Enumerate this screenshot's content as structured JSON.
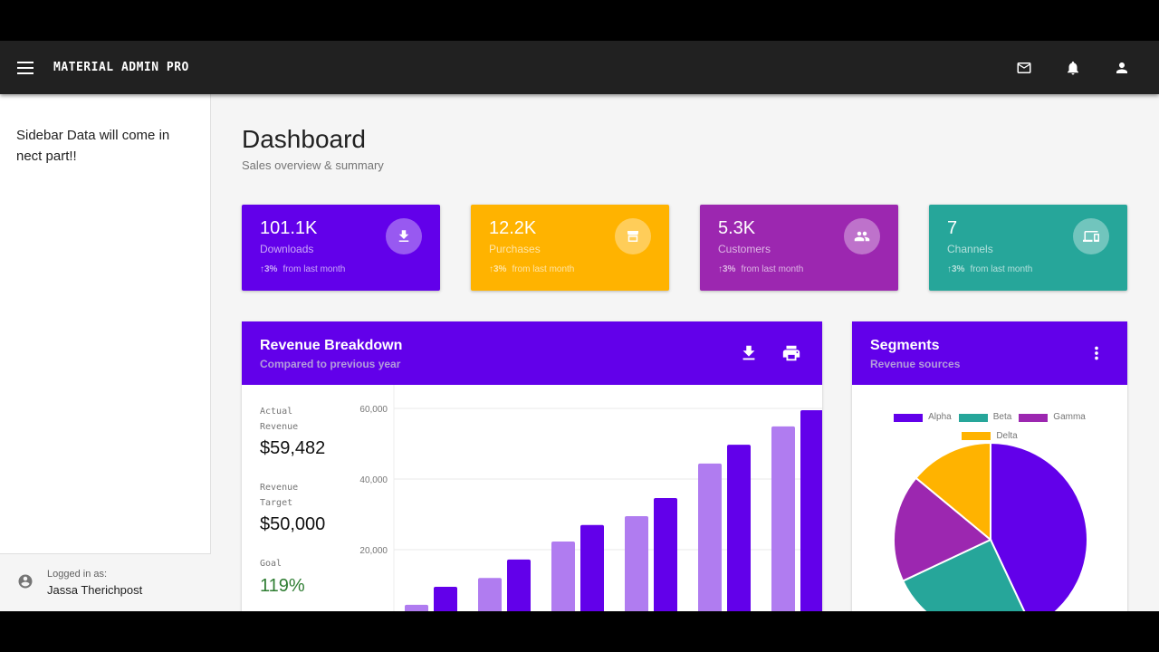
{
  "app": {
    "title": "MATERIAL ADMIN PRO",
    "icons": [
      "menu-icon",
      "mail-icon",
      "bell-icon",
      "account-icon"
    ]
  },
  "sidebar": {
    "text": "Sidebar Data will come in nect part!!",
    "logged_in_label": "Logged in as:",
    "user_name": "Jassa Therichpost"
  },
  "page": {
    "title": "Dashboard",
    "subtitle": "Sales overview & summary"
  },
  "stats": [
    {
      "value": "101.1K",
      "label": "Downloads",
      "trend": "↑3%",
      "trend_text": "from last month",
      "color": "#6200ea",
      "icon": "download-icon"
    },
    {
      "value": "12.2K",
      "label": "Purchases",
      "trend": "↑3%",
      "trend_text": "from last month",
      "color": "#ffb300",
      "icon": "store-icon"
    },
    {
      "value": "5.3K",
      "label": "Customers",
      "trend": "↑3%",
      "trend_text": "from last month",
      "color": "#9c27b0",
      "icon": "people-icon"
    },
    {
      "value": "7",
      "label": "Channels",
      "trend": "↑3%",
      "trend_text": "from last month",
      "color": "#26a69a",
      "icon": "devices-icon"
    }
  ],
  "revenue": {
    "title": "Revenue Breakdown",
    "subtitle": "Compared to previous year",
    "actual_label": "Actual Revenue",
    "actual_value": "$59,482",
    "target_label": "Revenue Target",
    "target_value": "$50,000",
    "goal_label": "Goal",
    "goal_value": "119%",
    "goal_color": "#2e7d32"
  },
  "segments": {
    "title": "Segments",
    "subtitle": "Revenue sources"
  },
  "chart_data": [
    {
      "type": "bar",
      "ylim": [
        0,
        60000
      ],
      "yticks": [
        "20,000",
        "40,000",
        "60,000"
      ],
      "grid": true,
      "series": [
        {
          "color": "#b07cf0",
          "values": [
            4400,
            12000,
            22300,
            29500,
            44400,
            54900
          ]
        },
        {
          "color": "#6200ea",
          "values": [
            9500,
            17200,
            27000,
            34600,
            49700,
            59482
          ]
        }
      ]
    },
    {
      "type": "pie",
      "legend": "top",
      "labels": [
        "Alpha",
        "Beta",
        "Gamma",
        "Delta"
      ],
      "values": [
        43,
        25,
        18,
        14
      ],
      "colors": [
        "#6200ea",
        "#26a69a",
        "#9c27b0",
        "#ffb300"
      ]
    }
  ]
}
